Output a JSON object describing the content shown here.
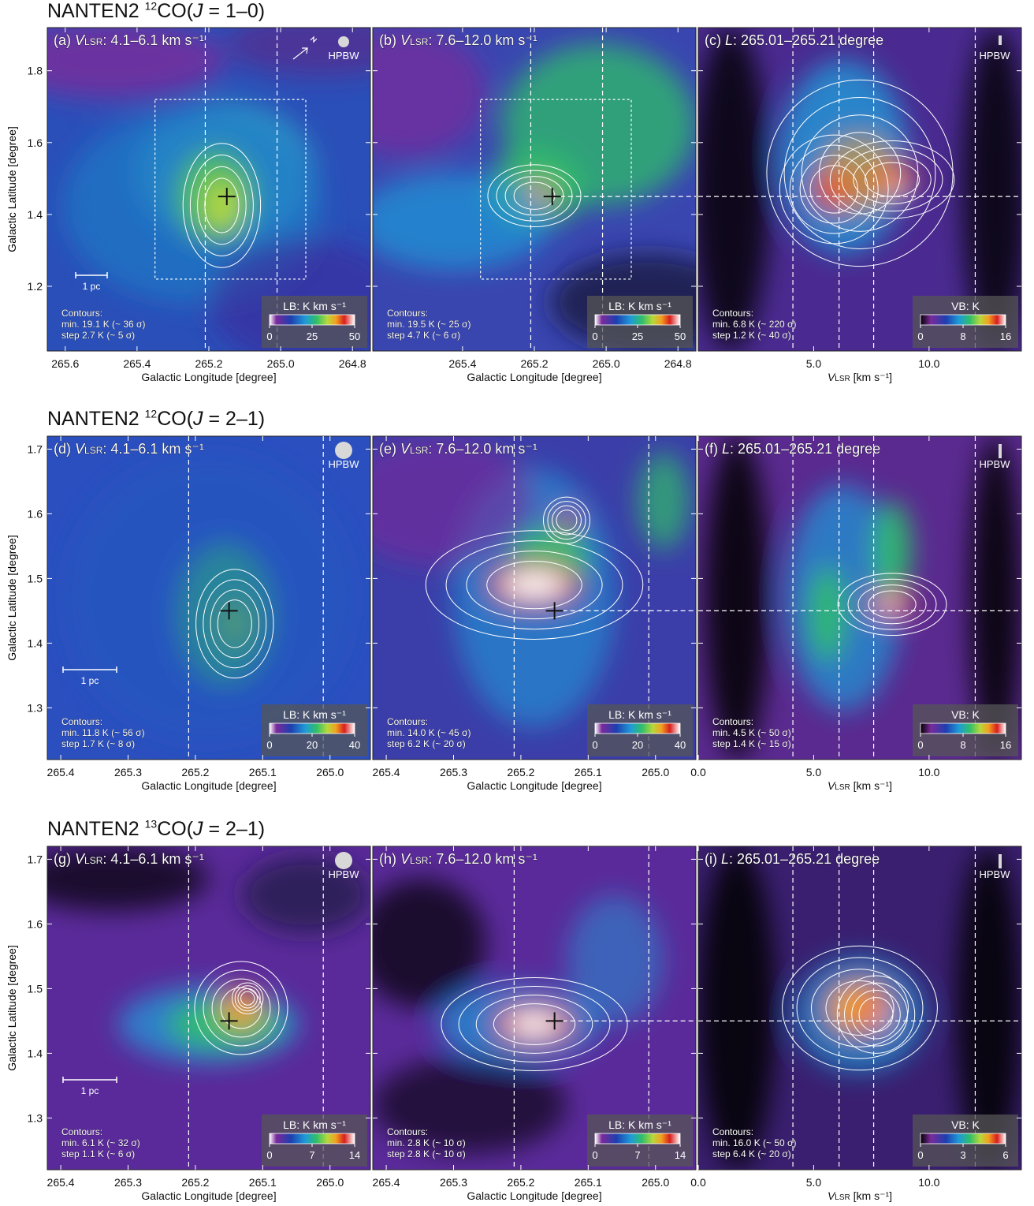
{
  "rows": [
    {
      "title": {
        "prefix": "NANTEN2 ",
        "iso": "12",
        "mol": "CO(",
        "J": "J",
        "trans": " = 1–0)"
      },
      "ylabel": "Galactic Latitude [degree]",
      "y_ticks": [
        "1.2",
        "1.4",
        "1.6",
        "1.8"
      ],
      "panels": [
        {
          "kind": "LB",
          "label": "(a)",
          "vlabel": "V",
          "vsub": "LSR",
          "range_text": ": 4.1–6.1 km s⁻¹",
          "x_ticks": [
            "265.6",
            "265.4",
            "265.2",
            "265.0",
            "264.8"
          ],
          "xlabel": "Galactic Longitude [degree]",
          "scalebar": "1 pc",
          "hpbw": "HPBW",
          "contours": [
            "Contours:",
            "min. 19.1 K (~ 36 σ)",
            "step   2.7 K (~ 5 σ)"
          ],
          "colorbar": {
            "title": "LB: K km s⁻¹",
            "ticks": [
              "0",
              "25",
              "50"
            ]
          }
        },
        {
          "kind": "LB",
          "label": "(b)",
          "vlabel": "V",
          "vsub": "LSR",
          "range_text": ": 7.6–12.0 km s⁻¹",
          "x_ticks": [
            "265.4",
            "265.2",
            "265.0",
            "264.8"
          ],
          "xlabel": "Galactic Longitude [degree]",
          "contours": [
            "Contours:",
            "min. 19.5 K (~ 25 σ)",
            "step   4.7 K (~ 6 σ)"
          ],
          "colorbar": {
            "title": "LB: K km s⁻¹",
            "ticks": [
              "0",
              "25",
              "50"
            ]
          }
        },
        {
          "kind": "VB",
          "label": "(c)",
          "lvar": "L",
          "range_text": ": 265.01–265.21 degree",
          "x_ticks": [
            "5.0",
            "10.0"
          ],
          "xlabel_v": "V",
          "xlabel_sub": "LSR",
          "xlabel_tail": " [km s⁻¹]",
          "hpbw": "HPBW",
          "contours": [
            "Contours:",
            "min. 6.8 K (~ 220 σ)",
            "step 1.2 K (~ 40 σ)"
          ],
          "colorbar": {
            "title": "VB: K",
            "ticks": [
              "0",
              "8",
              "16"
            ]
          }
        }
      ]
    },
    {
      "title": {
        "prefix": "NANTEN2 ",
        "iso": "12",
        "mol": "CO(",
        "J": "J",
        "trans": " = 2–1)"
      },
      "ylabel": "Galactic Latitude [degree]",
      "y_ticks": [
        "1.3",
        "1.4",
        "1.5",
        "1.6",
        "1.7"
      ],
      "panels": [
        {
          "kind": "LB",
          "label": "(d)",
          "vlabel": "V",
          "vsub": "LSR",
          "range_text": ": 4.1–6.1 km s⁻¹",
          "x_ticks": [
            "265.4",
            "265.3",
            "265.2",
            "265.1",
            "265.0"
          ],
          "xlabel": "Galactic Longitude [degree]",
          "scalebar": "1 pc",
          "hpbw": "HPBW",
          "contours": [
            "Contours:",
            "min. 11.8 K (~ 56 σ)",
            "step   1.7 K (~  8 σ)"
          ],
          "colorbar": {
            "title": "LB: K km s⁻¹",
            "ticks": [
              "0",
              "20",
              "40"
            ]
          }
        },
        {
          "kind": "LB",
          "label": "(e)",
          "vlabel": "V",
          "vsub": "LSR",
          "range_text": ": 7.6–12.0 km s⁻¹",
          "x_ticks": [
            "265.4",
            "265.3",
            "265.2",
            "265.1",
            "265.0"
          ],
          "xlabel": "Galactic Longitude [degree]",
          "contours": [
            "Contours:",
            "min. 14.0 K (~ 45 σ)",
            "step   6.2 K (~ 20 σ)"
          ],
          "colorbar": {
            "title": "LB: K km s⁻¹",
            "ticks": [
              "0",
              "20",
              "40"
            ]
          }
        },
        {
          "kind": "VB",
          "label": "(f)",
          "lvar": "L",
          "range_text": ": 265.01–265.21 degree",
          "x_ticks": [
            "0.0",
            "5.0",
            "10.0"
          ],
          "xlabel_v": "V",
          "xlabel_sub": "LSR",
          "xlabel_tail": " [km s⁻¹]",
          "hpbw": "HPBW",
          "contours": [
            "Contours:",
            "min. 4.5 K (~ 50 σ)",
            "step 1.4 K (~ 15 σ)"
          ],
          "colorbar": {
            "title": "VB: K",
            "ticks": [
              "0",
              "8",
              "16"
            ]
          }
        }
      ]
    },
    {
      "title": {
        "prefix": "NANTEN2 ",
        "iso": "13",
        "mol": "CO(",
        "J": "J",
        "trans": " = 2–1)"
      },
      "ylabel": "Galactic Latitude [degree]",
      "y_ticks": [
        "1.3",
        "1.4",
        "1.5",
        "1.6",
        "1.7"
      ],
      "panels": [
        {
          "kind": "LB",
          "label": "(g)",
          "vlabel": "V",
          "vsub": "LSR",
          "range_text": ": 4.1–6.1 km s⁻¹",
          "x_ticks": [
            "265.4",
            "265.3",
            "265.2",
            "265.1",
            "265.0"
          ],
          "xlabel": "Galactic Longitude [degree]",
          "scalebar": "1 pc",
          "hpbw": "HPBW",
          "contours": [
            "Contours:",
            "min. 6.1 K (~ 32 σ)",
            "step 1.1 K (~  6 σ)"
          ],
          "colorbar": {
            "title": "LB: K km s⁻¹",
            "ticks": [
              "0",
              "7",
              "14"
            ]
          }
        },
        {
          "kind": "LB",
          "label": "(h)",
          "vlabel": "V",
          "vsub": "LSR",
          "range_text": ": 7.6–12.0 km s⁻¹",
          "x_ticks": [
            "265.4",
            "265.3",
            "265.2",
            "265.1",
            "265.0"
          ],
          "xlabel": "Galactic Longitude [degree]",
          "contours": [
            "Contours:",
            "min. 2.8 K (~ 10 σ)",
            "step 2.8 K (~ 10 σ)"
          ],
          "colorbar": {
            "title": "LB: K km s⁻¹",
            "ticks": [
              "0",
              "7",
              "14"
            ]
          }
        },
        {
          "kind": "VB",
          "label": "(i)",
          "lvar": "L",
          "range_text": ": 265.01–265.21 degree",
          "x_ticks": [
            "0.0",
            "5.0",
            "10.0"
          ],
          "xlabel_v": "V",
          "xlabel_sub": "LSR",
          "xlabel_tail": " [km s⁻¹]",
          "hpbw": "HPBW",
          "contours": [
            "Contours:",
            "min. 16.0 K (~ 50 σ)",
            "step   6.4 K (~ 20 σ)"
          ],
          "colorbar": {
            "title": "VB: K",
            "ticks": [
              "0",
              "3",
              "6"
            ]
          }
        }
      ]
    }
  ],
  "chart_data": [
    {
      "type": "heatmap",
      "panel": "(a)",
      "title": "(a) VLSR: 4.1–6.1 km s⁻¹",
      "xlabel": "Galactic Longitude [degree]",
      "ylabel": "Galactic Latitude [degree]",
      "xlim": [
        265.65,
        264.75
      ],
      "ylim": [
        1.02,
        1.92
      ],
      "colorbar_range": [
        0,
        50
      ],
      "colorbar_label": "LB: K km s⁻¹",
      "marker": {
        "l": 265.15,
        "b": 1.45
      },
      "peak": {
        "l": 265.13,
        "b": 1.44
      }
    },
    {
      "type": "heatmap",
      "panel": "(b)",
      "title": "(b) VLSR: 7.6–12.0 km s⁻¹",
      "xlabel": "Galactic Longitude [degree]",
      "xlim": [
        265.65,
        264.75
      ],
      "ylim": [
        1.02,
        1.92
      ],
      "colorbar_range": [
        0,
        50
      ],
      "colorbar_label": "LB: K km s⁻¹",
      "marker": {
        "l": 265.15,
        "b": 1.45
      },
      "peak": {
        "l": 265.16,
        "b": 1.45
      }
    },
    {
      "type": "heatmap",
      "panel": "(c)",
      "title": "(c) L: 265.01–265.21 degree",
      "xlabel": "VLSR [km s⁻¹]",
      "xlim": [
        0.0,
        14.0
      ],
      "ylim": [
        1.02,
        1.92
      ],
      "colorbar_range": [
        0,
        16
      ],
      "colorbar_label": "VB: K",
      "peaks": [
        {
          "v": 5.5,
          "b": 1.43
        },
        {
          "v": 8.1,
          "b": 1.46
        }
      ]
    },
    {
      "type": "heatmap",
      "panel": "(d)",
      "title": "(d) VLSR: 4.1–6.1 km s⁻¹",
      "xlabel": "Galactic Longitude [degree]",
      "ylabel": "Galactic Latitude [degree]",
      "xlim": [
        265.42,
        264.94
      ],
      "ylim": [
        1.22,
        1.72
      ],
      "colorbar_range": [
        0,
        40
      ],
      "colorbar_label": "LB: K km s⁻¹",
      "marker": {
        "l": 265.15,
        "b": 1.45
      },
      "peak": {
        "l": 265.12,
        "b": 1.4
      }
    },
    {
      "type": "heatmap",
      "panel": "(e)",
      "title": "(e) VLSR: 7.6–12.0 km s⁻¹",
      "xlabel": "Galactic Longitude [degree]",
      "xlim": [
        265.42,
        264.94
      ],
      "ylim": [
        1.22,
        1.72
      ],
      "colorbar_range": [
        0,
        40
      ],
      "colorbar_label": "LB: K km s⁻¹",
      "marker": {
        "l": 265.15,
        "b": 1.45
      },
      "peak": {
        "l": 265.16,
        "b": 1.45
      }
    },
    {
      "type": "heatmap",
      "panel": "(f)",
      "title": "(f) L: 265.01–265.21 degree",
      "xlabel": "VLSR [km s⁻¹]",
      "xlim": [
        0.0,
        14.0
      ],
      "ylim": [
        1.22,
        1.72
      ],
      "colorbar_range": [
        0,
        16
      ],
      "colorbar_label": "VB: K",
      "peaks": [
        {
          "v": 5.5,
          "b": 1.4
        },
        {
          "v": 8.6,
          "b": 1.45
        }
      ]
    },
    {
      "type": "heatmap",
      "panel": "(g)",
      "title": "(g) VLSR: 4.1–6.1 km s⁻¹",
      "xlabel": "Galactic Longitude [degree]",
      "ylabel": "Galactic Latitude [degree]",
      "xlim": [
        265.42,
        264.94
      ],
      "ylim": [
        1.22,
        1.72
      ],
      "colorbar_range": [
        0,
        14
      ],
      "colorbar_label": "LB: K km s⁻¹",
      "marker": {
        "l": 265.15,
        "b": 1.45
      },
      "peak": {
        "l": 265.12,
        "b": 1.48
      }
    },
    {
      "type": "heatmap",
      "panel": "(h)",
      "title": "(h) VLSR: 7.6–12.0 km s⁻¹",
      "xlabel": "Galactic Longitude [degree]",
      "xlim": [
        265.42,
        264.94
      ],
      "ylim": [
        1.22,
        1.72
      ],
      "colorbar_range": [
        0,
        14
      ],
      "colorbar_label": "LB: K km s⁻¹",
      "marker": {
        "l": 265.15,
        "b": 1.45
      },
      "peak": {
        "l": 265.17,
        "b": 1.45
      }
    },
    {
      "type": "heatmap",
      "panel": "(i)",
      "title": "(i) L: 265.01–265.21 degree",
      "xlabel": "VLSR [km s⁻¹]",
      "xlim": [
        0.0,
        14.0
      ],
      "ylim": [
        1.22,
        1.72
      ],
      "colorbar_range": [
        0,
        6
      ],
      "colorbar_label": "VB: K",
      "peaks": [
        {
          "v": 7.6,
          "b": 1.45
        }
      ]
    }
  ]
}
